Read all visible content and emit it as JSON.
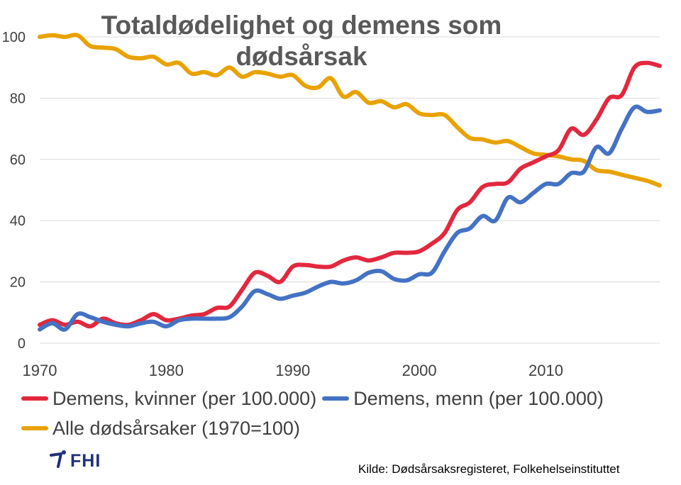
{
  "chart_data": {
    "type": "line",
    "title": "Totaldødelighet og demens som dødsårsak",
    "xlabel": "",
    "ylabel": "",
    "ylim": [
      0,
      100
    ],
    "xlim": [
      1970,
      2019
    ],
    "y_ticks": [
      0,
      20,
      40,
      60,
      80,
      100
    ],
    "x_ticks": [
      1970,
      1980,
      1990,
      2000,
      2010
    ],
    "grid": true,
    "legend_position": "bottom",
    "series": [
      {
        "name": "Demens, kvinner (per 100.000)",
        "color": "#e3283e",
        "x": [
          1970,
          1971,
          1972,
          1973,
          1974,
          1975,
          1976,
          1977,
          1978,
          1979,
          1980,
          1981,
          1982,
          1983,
          1984,
          1985,
          1986,
          1987,
          1988,
          1989,
          1990,
          1991,
          1992,
          1993,
          1994,
          1995,
          1996,
          1997,
          1998,
          1999,
          2000,
          2001,
          2002,
          2003,
          2004,
          2005,
          2006,
          2007,
          2008,
          2009,
          2010,
          2011,
          2012,
          2013,
          2014,
          2015,
          2016,
          2017,
          2018,
          2019
        ],
        "values": [
          6,
          7.5,
          6,
          7,
          5.5,
          8,
          6.5,
          6,
          7.5,
          9.5,
          7.5,
          8,
          9,
          9.5,
          11.5,
          12,
          17.5,
          23,
          22,
          20,
          25,
          25.5,
          25,
          25,
          27,
          28,
          27,
          28,
          29.5,
          29.5,
          30,
          32.5,
          36,
          43.5,
          46,
          51,
          52,
          52.5,
          57,
          59,
          61,
          63,
          70,
          68,
          73,
          80,
          81,
          90,
          91.5,
          90.5
        ]
      },
      {
        "name": "Demens, menn (per 100.000)",
        "color": "#4472c4",
        "x": [
          1970,
          1971,
          1972,
          1973,
          1974,
          1975,
          1976,
          1977,
          1978,
          1979,
          1980,
          1981,
          1982,
          1983,
          1984,
          1985,
          1986,
          1987,
          1988,
          1989,
          1990,
          1991,
          1992,
          1993,
          1994,
          1995,
          1996,
          1997,
          1998,
          1999,
          2000,
          2001,
          2002,
          2003,
          2004,
          2005,
          2006,
          2007,
          2008,
          2009,
          2010,
          2011,
          2012,
          2013,
          2014,
          2015,
          2016,
          2017,
          2018,
          2019
        ],
        "values": [
          4.5,
          6.5,
          4.5,
          9.5,
          8.5,
          7,
          6,
          5.5,
          6.5,
          7,
          5.5,
          7.5,
          8,
          8,
          8,
          8.5,
          12,
          17,
          16,
          14.5,
          15.5,
          16.5,
          18.5,
          20,
          19.5,
          20.5,
          23,
          23.5,
          21,
          20.5,
          22.5,
          23,
          30,
          36,
          37.5,
          41.5,
          40,
          47.5,
          46,
          49,
          52,
          52,
          55.5,
          56,
          64,
          62,
          70,
          77,
          75.5,
          76
        ]
      },
      {
        "name": "Alle dødsårsaker (1970=100)",
        "color": "#e8a202",
        "x": [
          1970,
          1971,
          1972,
          1973,
          1974,
          1975,
          1976,
          1977,
          1978,
          1979,
          1980,
          1981,
          1982,
          1983,
          1984,
          1985,
          1986,
          1987,
          1988,
          1989,
          1990,
          1991,
          1992,
          1993,
          1994,
          1995,
          1996,
          1997,
          1998,
          1999,
          2000,
          2001,
          2002,
          2003,
          2004,
          2005,
          2006,
          2007,
          2008,
          2009,
          2010,
          2011,
          2012,
          2013,
          2014,
          2015,
          2016,
          2017,
          2018,
          2019
        ],
        "values": [
          100,
          100.5,
          100,
          100.5,
          97,
          96.5,
          96,
          93.5,
          93,
          93.5,
          91,
          91.5,
          88,
          88.5,
          87.5,
          90,
          87,
          88.5,
          88,
          87,
          87.5,
          84,
          83.5,
          86.5,
          80.5,
          82,
          78.5,
          79,
          77,
          78,
          75,
          74.5,
          74.5,
          70.5,
          67,
          66.5,
          65.5,
          66,
          64,
          62,
          61.5,
          61,
          60,
          59.5,
          56.5,
          56,
          55,
          54,
          53,
          51.5
        ]
      }
    ]
  },
  "legend": {
    "women": "Demens, kvinner (per 100.000)",
    "men": "Demens, menn (per 100.000)",
    "all": "Alle dødsårsaker (1970=100)"
  },
  "logo": {
    "text": "FHI"
  },
  "source": "Kilde: Dødsårsaksregisteret, Folkehelseinstituttet"
}
